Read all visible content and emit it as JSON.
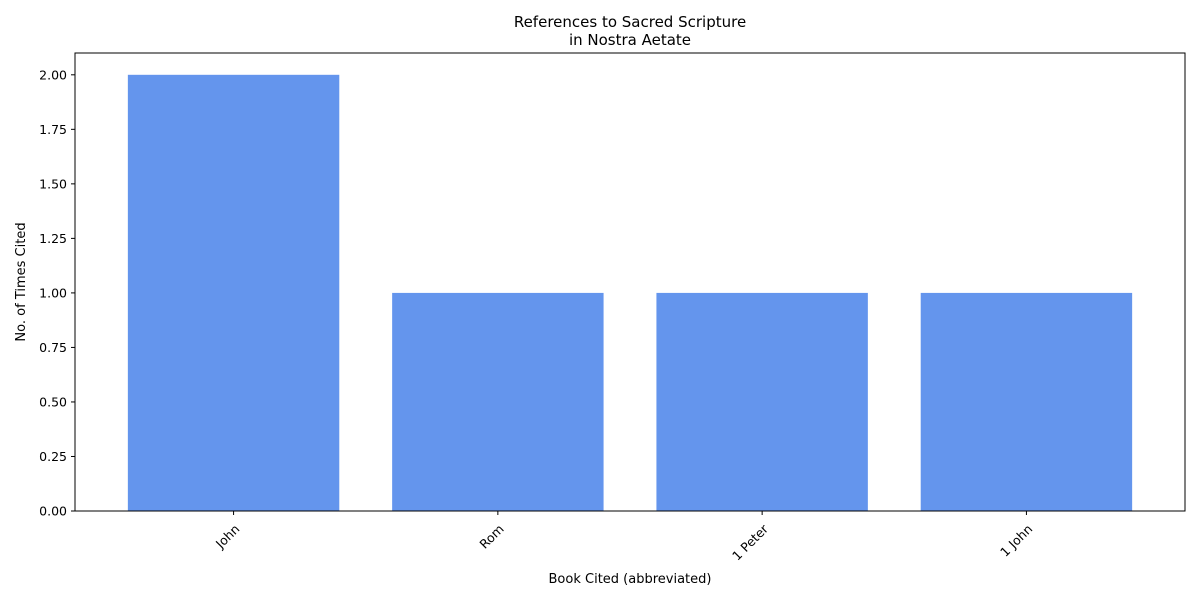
{
  "chart_data": {
    "type": "bar",
    "title": [
      "References to Sacred Scripture",
      "in Nostra Aetate"
    ],
    "xlabel": "Book Cited (abbreviated)",
    "ylabel": "No. of Times Cited",
    "categories": [
      "John",
      "Rom",
      "1 Peter",
      "1 John"
    ],
    "values": [
      2,
      1,
      1,
      1
    ],
    "ylim": [
      0,
      2.1
    ],
    "yticks": [
      "0.00",
      "0.25",
      "0.50",
      "0.75",
      "1.00",
      "1.25",
      "1.50",
      "1.75",
      "2.00"
    ],
    "grid": false,
    "legend": "none",
    "bar_color": "#6495ED"
  }
}
